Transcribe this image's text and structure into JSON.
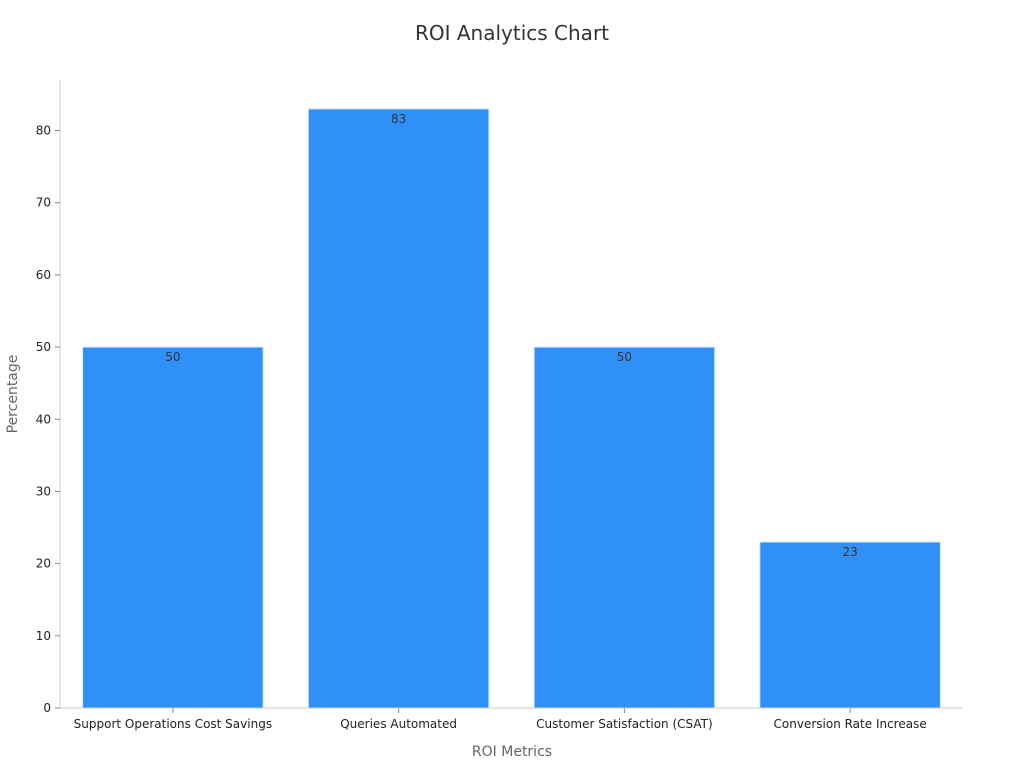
{
  "chart_data": {
    "type": "bar",
    "title": "ROI Analytics Chart",
    "xlabel": "ROI Metrics",
    "ylabel": "Percentage",
    "categories": [
      "Support Operations Cost Savings",
      "Queries Automated",
      "Customer Satisfaction (CSAT)",
      "Conversion Rate Increase"
    ],
    "values": [
      50,
      83,
      50,
      23
    ],
    "ylim": [
      0,
      87
    ],
    "yticks": [
      0,
      10,
      20,
      30,
      40,
      50,
      60,
      70,
      80
    ],
    "grid": false,
    "legend": "none",
    "colors": {
      "bar": "#2f91f7",
      "bar_edge": "#dceafa",
      "axis": "#cccccc",
      "tick": "#888888"
    }
  }
}
